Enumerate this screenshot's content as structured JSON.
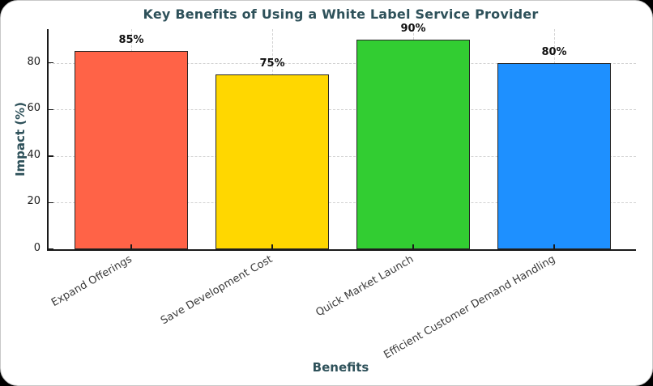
{
  "chart_data": {
    "type": "bar",
    "title": "Key Benefits of Using a White Label Service Provider",
    "xlabel": "Benefits",
    "ylabel": "Impact (%)",
    "categories": [
      "Expand Offerings",
      "Save Development Cost",
      "Quick Market Launch",
      "Efficient Customer Demand Handling"
    ],
    "values": [
      85,
      75,
      90,
      80
    ],
    "value_labels": [
      "85%",
      "75%",
      "90%",
      "80%"
    ],
    "bar_colors": [
      "#ff6347",
      "#ffd700",
      "#32cd32",
      "#1e90ff"
    ],
    "bar_edge_color": "#262626",
    "y_ticks": [
      0,
      20,
      40,
      60,
      80
    ],
    "ylim": [
      0,
      94.5
    ],
    "grid": "dashed, horizontal and vertical",
    "legend": "none",
    "xtick_rotation_deg": 30,
    "colors": {
      "title": "#2e515a",
      "axis_labels": "#2e515a",
      "ytick_labels": "#1f1f1f",
      "xtick_labels": "#3a3a3a",
      "gridline": "#d2d2d2",
      "spine": "#1a1a1a",
      "card_background": "#ffffff",
      "page_background": "#000000"
    }
  }
}
